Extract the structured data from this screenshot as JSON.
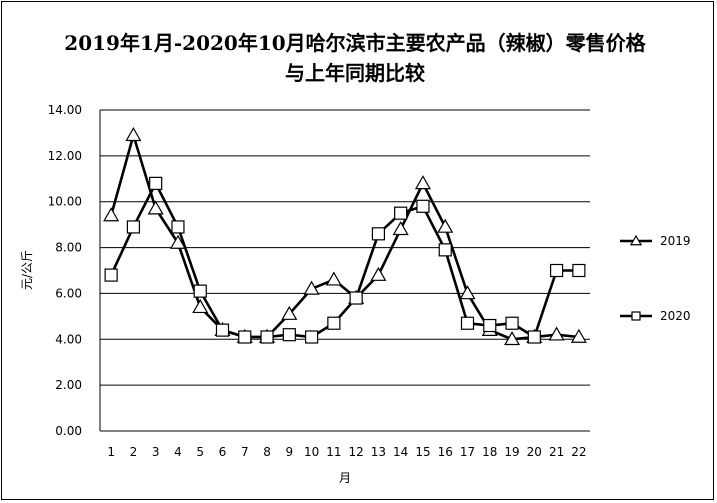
{
  "chart_data": {
    "type": "line",
    "title": "2019年1月-2020年10月哈尔滨市主要农产品（辣椒）零售价格与上年同期比较",
    "xlabel": "月",
    "ylabel": "元/公斤",
    "categories": [
      "1",
      "2",
      "3",
      "4",
      "5",
      "6",
      "7",
      "8",
      "9",
      "10",
      "11",
      "12",
      "13",
      "14",
      "15",
      "16",
      "17",
      "18",
      "19",
      "20",
      "21",
      "22"
    ],
    "y_ticks": [
      "0.00",
      "2.00",
      "4.00",
      "6.00",
      "8.00",
      "10.00",
      "12.00",
      "14.00"
    ],
    "ylim": [
      0,
      14
    ],
    "grid": "horizontal",
    "legend_position": "right",
    "series": [
      {
        "name": "2019",
        "marker": "triangle",
        "values": [
          9.4,
          12.9,
          9.7,
          8.2,
          5.4,
          4.4,
          4.1,
          4.1,
          5.1,
          6.2,
          6.6,
          5.8,
          6.8,
          8.8,
          10.8,
          8.9,
          6.0,
          4.4,
          4.0,
          4.1,
          4.2,
          4.1
        ]
      },
      {
        "name": "2020",
        "marker": "square",
        "values": [
          6.8,
          8.9,
          10.8,
          8.9,
          6.1,
          4.4,
          4.1,
          4.1,
          4.2,
          4.1,
          4.7,
          5.8,
          8.6,
          9.5,
          9.8,
          7.9,
          4.7,
          4.6,
          4.7,
          4.1,
          7.0,
          7.0
        ]
      }
    ],
    "colors": {
      "line": "#000000",
      "marker_fill": "#ffffff"
    }
  }
}
